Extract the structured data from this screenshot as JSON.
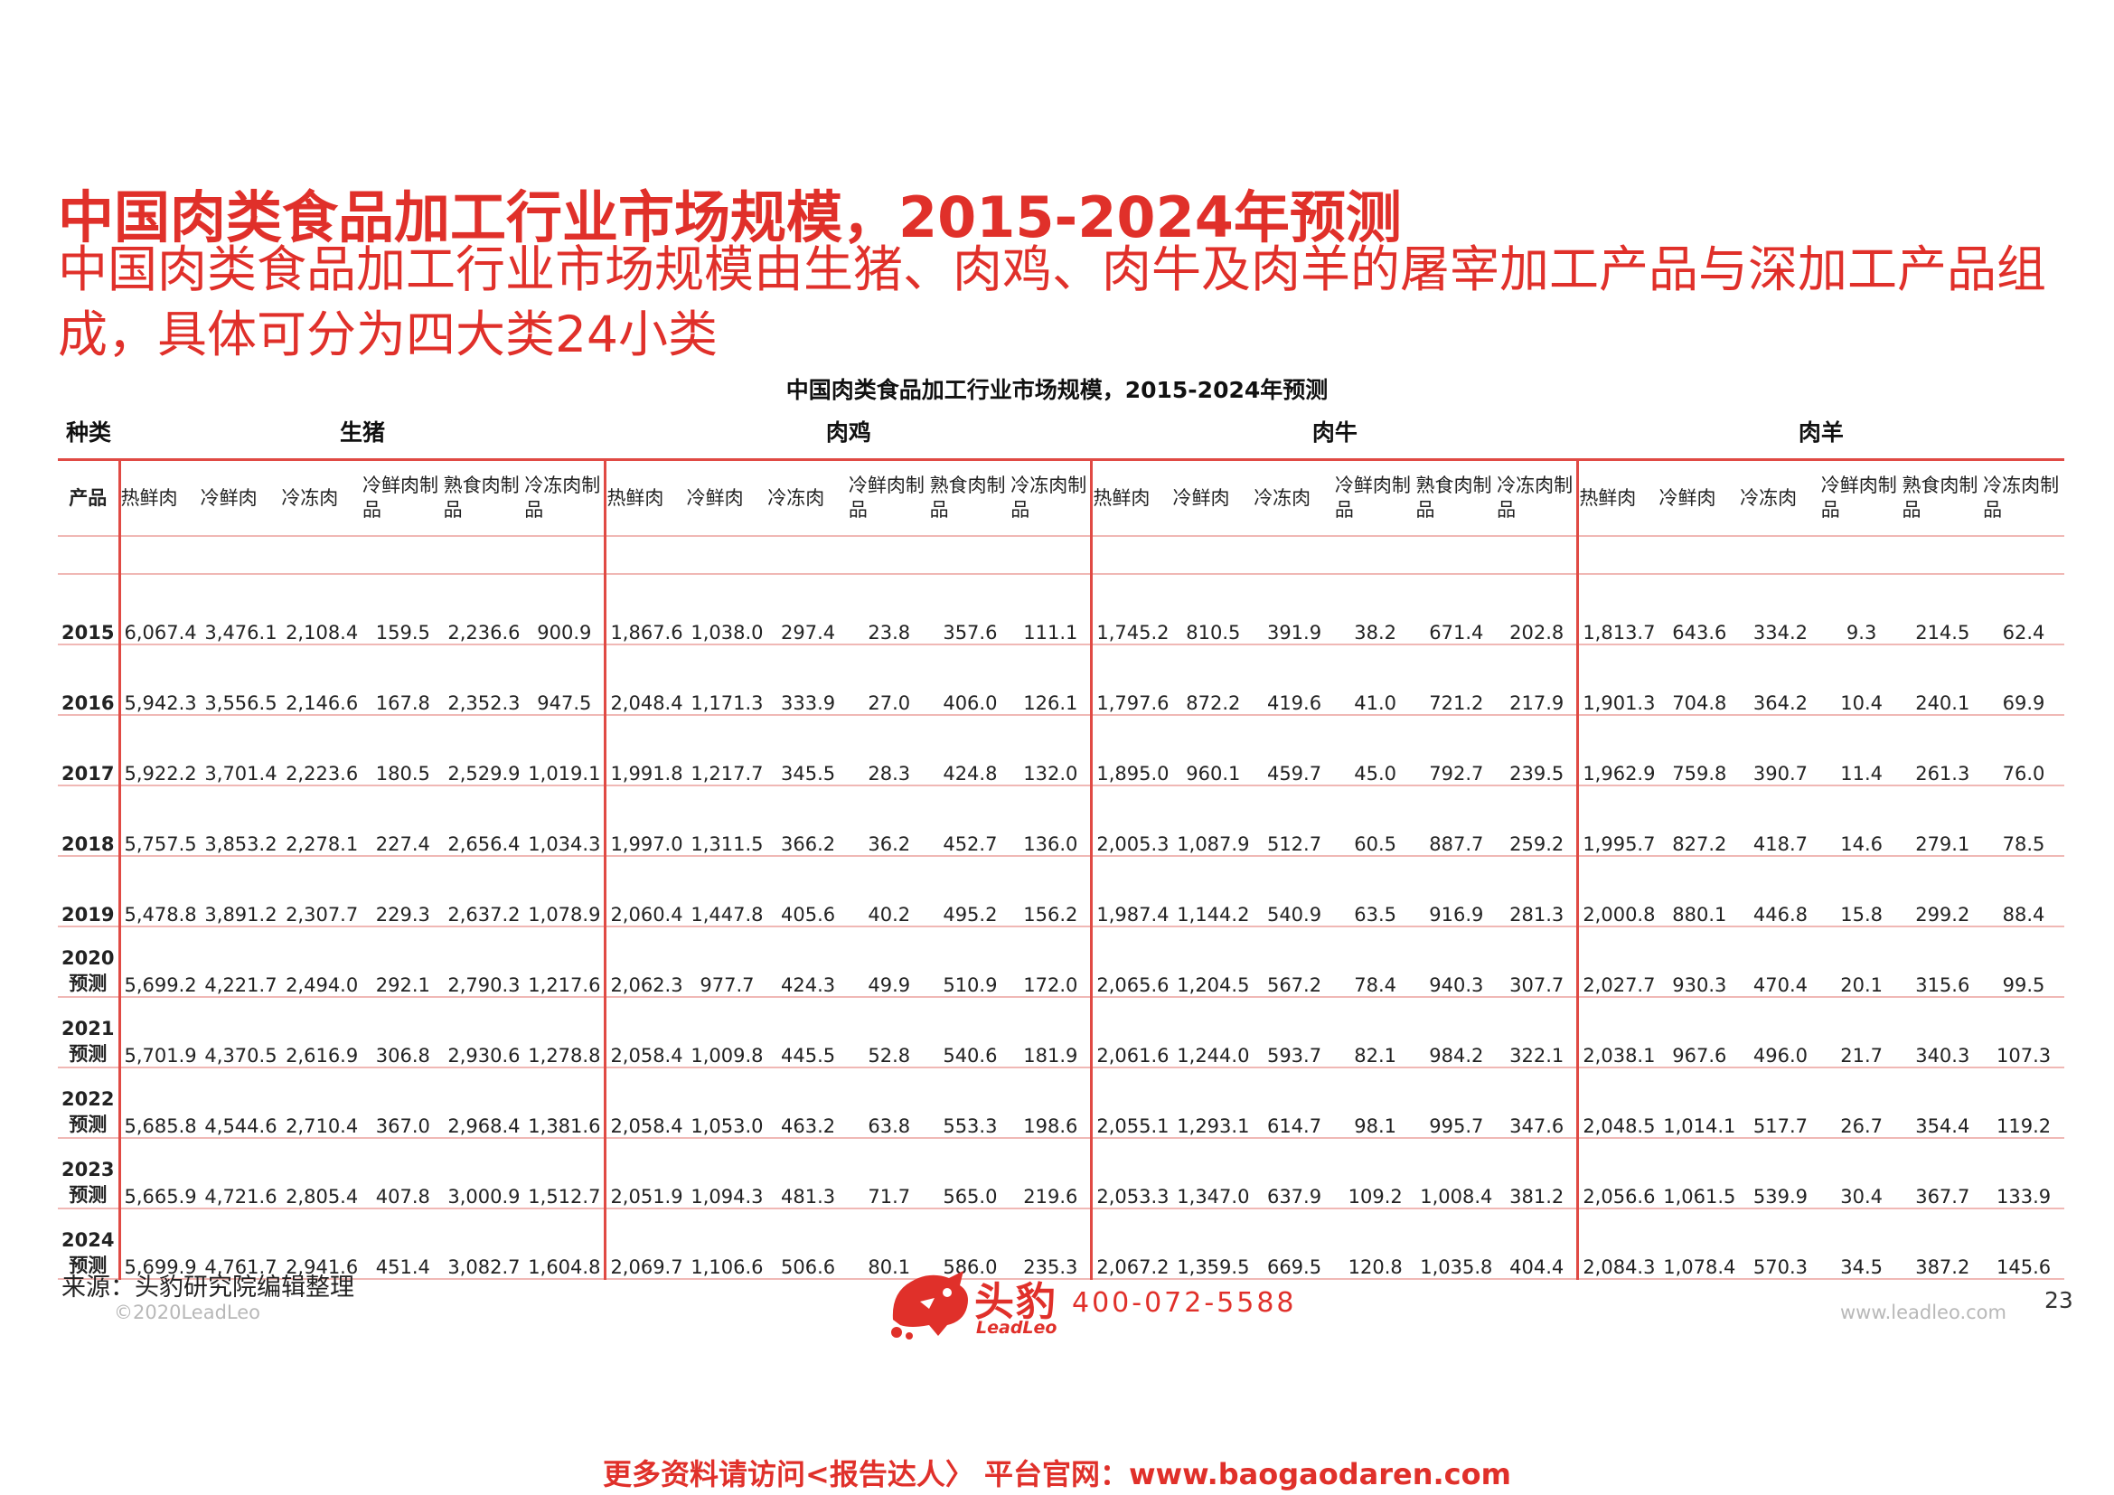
{
  "title": "中国肉类食品加工行业市场规模，2015-2024年预测",
  "subtitle": "中国肉类食品加工行业市场规模由生猪、肉鸡、肉牛及肉羊的屠宰加工产品与深加工产品组成，具体可分为四大类24小类",
  "table": {
    "caption": "中国肉类食品加工行业市场规模，2015-2024年预测",
    "category_label": "种类",
    "product_label": "产品",
    "groups": [
      "生猪",
      "肉鸡",
      "肉牛",
      "肉羊"
    ],
    "products": [
      "热鲜肉",
      "冷鲜肉",
      "冷冻肉",
      "冷鲜肉制品",
      "熟食肉制品",
      "冷冻肉制品"
    ],
    "rows": [
      {
        "year": "2015",
        "values": [
          "6,067.4",
          "3,476.1",
          "2,108.4",
          "159.5",
          "2,236.6",
          "900.9",
          "1,867.6",
          "1,038.0",
          "297.4",
          "23.8",
          "357.6",
          "111.1",
          "1,745.2",
          "810.5",
          "391.9",
          "38.2",
          "671.4",
          "202.8",
          "1,813.7",
          "643.6",
          "334.2",
          "9.3",
          "214.5",
          "62.4"
        ]
      },
      {
        "year": "2016",
        "values": [
          "5,942.3",
          "3,556.5",
          "2,146.6",
          "167.8",
          "2,352.3",
          "947.5",
          "2,048.4",
          "1,171.3",
          "333.9",
          "27.0",
          "406.0",
          "126.1",
          "1,797.6",
          "872.2",
          "419.6",
          "41.0",
          "721.2",
          "217.9",
          "1,901.3",
          "704.8",
          "364.2",
          "10.4",
          "240.1",
          "69.9"
        ]
      },
      {
        "year": "2017",
        "values": [
          "5,922.2",
          "3,701.4",
          "2,223.6",
          "180.5",
          "2,529.9",
          "1,019.1",
          "1,991.8",
          "1,217.7",
          "345.5",
          "28.3",
          "424.8",
          "132.0",
          "1,895.0",
          "960.1",
          "459.7",
          "45.0",
          "792.7",
          "239.5",
          "1,962.9",
          "759.8",
          "390.7",
          "11.4",
          "261.3",
          "76.0"
        ]
      },
      {
        "year": "2018",
        "values": [
          "5,757.5",
          "3,853.2",
          "2,278.1",
          "227.4",
          "2,656.4",
          "1,034.3",
          "1,997.0",
          "1,311.5",
          "366.2",
          "36.2",
          "452.7",
          "136.0",
          "2,005.3",
          "1,087.9",
          "512.7",
          "60.5",
          "887.7",
          "259.2",
          "1,995.7",
          "827.2",
          "418.7",
          "14.6",
          "279.1",
          "78.5"
        ]
      },
      {
        "year": "2019",
        "values": [
          "5,478.8",
          "3,891.2",
          "2,307.7",
          "229.3",
          "2,637.2",
          "1,078.9",
          "2,060.4",
          "1,447.8",
          "405.6",
          "40.2",
          "495.2",
          "156.2",
          "1,987.4",
          "1,144.2",
          "540.9",
          "63.5",
          "916.9",
          "281.3",
          "2,000.8",
          "880.1",
          "446.8",
          "15.8",
          "299.2",
          "88.4"
        ]
      },
      {
        "year": "2020预测",
        "values": [
          "5,699.2",
          "4,221.7",
          "2,494.0",
          "292.1",
          "2,790.3",
          "1,217.6",
          "2,062.3",
          "977.7",
          "424.3",
          "49.9",
          "510.9",
          "172.0",
          "2,065.6",
          "1,204.5",
          "567.2",
          "78.4",
          "940.3",
          "307.7",
          "2,027.7",
          "930.3",
          "470.4",
          "20.1",
          "315.6",
          "99.5"
        ]
      },
      {
        "year": "2021预测",
        "values": [
          "5,701.9",
          "4,370.5",
          "2,616.9",
          "306.8",
          "2,930.6",
          "1,278.8",
          "2,058.4",
          "1,009.8",
          "445.5",
          "52.8",
          "540.6",
          "181.9",
          "2,061.6",
          "1,244.0",
          "593.7",
          "82.1",
          "984.2",
          "322.1",
          "2,038.1",
          "967.6",
          "496.0",
          "21.7",
          "340.3",
          "107.3"
        ]
      },
      {
        "year": "2022预测",
        "values": [
          "5,685.8",
          "4,544.6",
          "2,710.4",
          "367.0",
          "2,968.4",
          "1,381.6",
          "2,058.4",
          "1,053.0",
          "463.2",
          "63.8",
          "553.3",
          "198.6",
          "2,055.1",
          "1,293.1",
          "614.7",
          "98.1",
          "995.7",
          "347.6",
          "2,048.5",
          "1,014.1",
          "517.7",
          "26.7",
          "354.4",
          "119.2"
        ]
      },
      {
        "year": "2023预测",
        "values": [
          "5,665.9",
          "4,721.6",
          "2,805.4",
          "407.8",
          "3,000.9",
          "1,512.7",
          "2,051.9",
          "1,094.3",
          "481.3",
          "71.7",
          "565.0",
          "219.6",
          "2,053.3",
          "1,347.0",
          "637.9",
          "109.2",
          "1,008.4",
          "381.2",
          "2,056.6",
          "1,061.5",
          "539.9",
          "30.4",
          "367.7",
          "133.9"
        ]
      },
      {
        "year": "2024预测",
        "values": [
          "5,699.9",
          "4,761.7",
          "2,941.6",
          "451.4",
          "3,082.7",
          "1,604.8",
          "2,069.7",
          "1,106.6",
          "506.6",
          "80.1",
          "586.0",
          "235.3",
          "2,067.2",
          "1,359.5",
          "669.5",
          "120.8",
          "1,035.8",
          "404.4",
          "2,084.3",
          "1,078.4",
          "570.3",
          "34.5",
          "387.2",
          "145.6"
        ]
      }
    ]
  },
  "source": "来源：头豹研究院编辑整理",
  "copyright": "©2020LeadLeo",
  "brand_cn": "头豹",
  "brand_en": "LeadLeo",
  "phone": "400-072-5588",
  "website": "www.leadleo.com",
  "page_number": "23",
  "footer": "更多资料请访问<报告达人〉 平台官网：www.baogaodaren.com",
  "colors": {
    "accent": "#e0302a",
    "rule": "#f0b8b5"
  },
  "icons": [
    "leopard-logo-icon"
  ]
}
